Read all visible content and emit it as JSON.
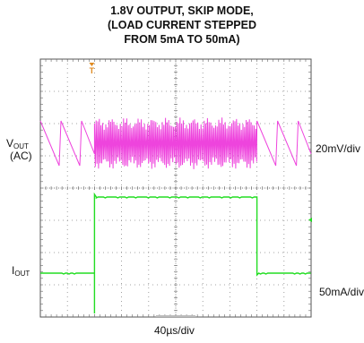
{
  "chart_data": {
    "type": "line",
    "title_lines": [
      "1.8V OUTPUT, SKIP MODE,",
      "(LOAD CURRENT STEPPED",
      "FROM 5mA TO 50mA)"
    ],
    "channels": [
      {
        "name_main": "V",
        "name_sub": "OUT",
        "name_extra": "(AC)",
        "scale": "20mV/div",
        "color": "#ee44dd"
      },
      {
        "name_main": "I",
        "name_sub": "OUT",
        "name_extra": "",
        "scale": "50mA/div",
        "color": "#22dd22"
      }
    ],
    "xscale": "40µs/div",
    "grid": {
      "divisions_x": 10,
      "divisions_y": 8
    },
    "trigger_marker": "T",
    "trigger_color": "#e08a20",
    "load_step": {
      "low_mA": 5,
      "high_mA": 50,
      "step_up_div": 2.0,
      "step_down_div": 8.0
    }
  }
}
